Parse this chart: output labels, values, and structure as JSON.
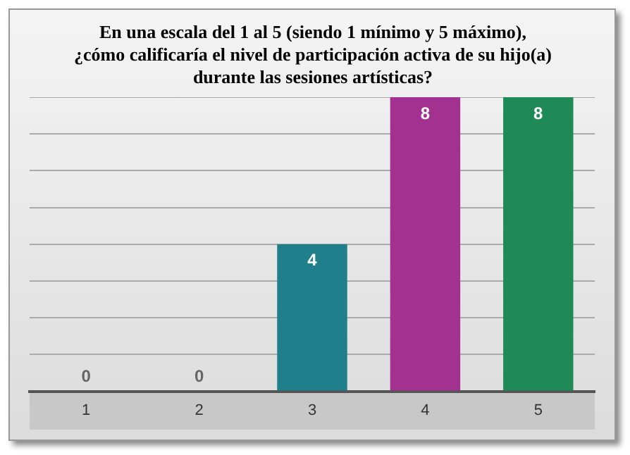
{
  "chart_data": {
    "type": "bar",
    "title": "En una escala del 1 al 5 (siendo 1 mínimo y 5 máximo), ¿cómo calificaría el nivel de participación activa de su hijo(a) durante las sesiones artísticas?",
    "categories": [
      "1",
      "2",
      "3",
      "4",
      "5"
    ],
    "values": [
      0,
      0,
      4,
      8,
      8
    ],
    "colors": [
      "#1f7f8a",
      "#1f7f8a",
      "#1f7f8a",
      "#a3318f",
      "#1f8a55"
    ],
    "ylim": [
      0,
      8
    ],
    "yticks": [
      {
        "value": 0,
        "label": null
      },
      {
        "value": 1,
        "label": null
      },
      {
        "value": 2,
        "label": null
      },
      {
        "value": 3,
        "label": null
      },
      {
        "value": 4,
        "label": null
      },
      {
        "value": 5,
        "label": null
      },
      {
        "value": 6,
        "label": null
      },
      {
        "value": 7,
        "label": null
      },
      {
        "value": 8,
        "label": null
      }
    ],
    "grid": "y",
    "tick_labels": "x",
    "data_labels": true,
    "legend": false
  }
}
